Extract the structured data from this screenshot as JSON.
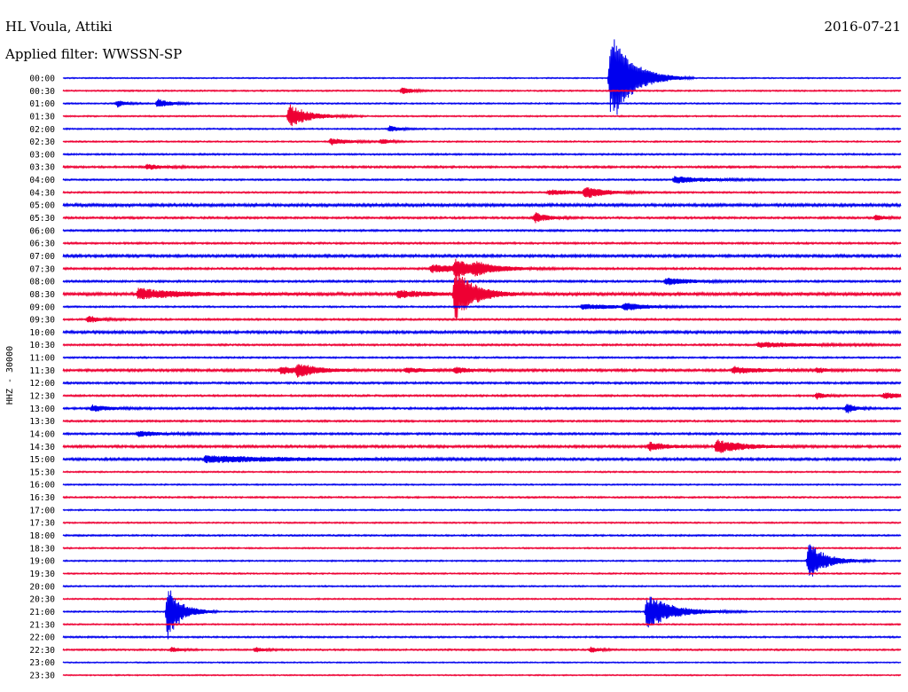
{
  "chart_data": {
    "type": "line",
    "title": "HL Voula, Attiki",
    "date": "2016-07-21",
    "subtitle": "Applied filter: WWSSN-SP",
    "ylabel": "HHZ - 30000",
    "xlabel": "",
    "grid": false,
    "legend": "none",
    "colors": {
      "even_rows": "#0000ee",
      "odd_rows": "#ee0033",
      "text": "#000000",
      "background": "#ffffff"
    },
    "traces": [
      {
        "label": "00:00",
        "noise": 0.6,
        "events": [
          {
            "x": 0.653,
            "amp": 42,
            "len": 0.025
          },
          {
            "x": 0.658,
            "amp": 18,
            "len": 0.02
          }
        ]
      },
      {
        "label": "00:30",
        "noise": 0.7,
        "events": [
          {
            "x": 0.405,
            "amp": 4,
            "len": 0.012
          }
        ]
      },
      {
        "label": "01:00",
        "noise": 0.7,
        "events": [
          {
            "x": 0.065,
            "amp": 4,
            "len": 0.01
          },
          {
            "x": 0.113,
            "amp": 5,
            "len": 0.015
          }
        ]
      },
      {
        "label": "01:30",
        "noise": 0.7,
        "events": [
          {
            "x": 0.27,
            "amp": 14,
            "len": 0.022
          }
        ]
      },
      {
        "label": "02:00",
        "noise": 0.7,
        "events": [
          {
            "x": 0.39,
            "amp": 4,
            "len": 0.01
          }
        ]
      },
      {
        "label": "02:30",
        "noise": 0.7,
        "events": [
          {
            "x": 0.32,
            "amp": 4,
            "len": 0.02
          },
          {
            "x": 0.38,
            "amp": 3,
            "len": 0.01
          }
        ]
      },
      {
        "label": "03:00",
        "noise": 0.8,
        "events": []
      },
      {
        "label": "03:30",
        "noise": 1.0,
        "events": [
          {
            "x": 0.1,
            "amp": 3,
            "len": 0.02
          }
        ]
      },
      {
        "label": "04:00",
        "noise": 0.8,
        "events": [
          {
            "x": 0.73,
            "amp": 4,
            "len": 0.04
          }
        ]
      },
      {
        "label": "04:30",
        "noise": 0.8,
        "events": [
          {
            "x": 0.58,
            "amp": 3,
            "len": 0.04
          },
          {
            "x": 0.623,
            "amp": 7,
            "len": 0.02
          }
        ]
      },
      {
        "label": "05:00",
        "noise": 1.4,
        "events": []
      },
      {
        "label": "05:30",
        "noise": 1.0,
        "events": [
          {
            "x": 0.563,
            "amp": 6,
            "len": 0.015
          },
          {
            "x": 0.97,
            "amp": 3,
            "len": 0.01
          }
        ]
      },
      {
        "label": "06:00",
        "noise": 0.9,
        "events": []
      },
      {
        "label": "06:30",
        "noise": 0.9,
        "events": []
      },
      {
        "label": "07:00",
        "noise": 1.3,
        "events": []
      },
      {
        "label": "07:30",
        "noise": 1.0,
        "events": [
          {
            "x": 0.44,
            "amp": 5,
            "len": 0.04
          },
          {
            "x": 0.468,
            "amp": 10,
            "len": 0.02
          },
          {
            "x": 0.49,
            "amp": 5,
            "len": 0.03
          }
        ]
      },
      {
        "label": "08:00",
        "noise": 1.0,
        "events": [
          {
            "x": 0.72,
            "amp": 4,
            "len": 0.03
          }
        ]
      },
      {
        "label": "08:30",
        "noise": 1.5,
        "events": [
          {
            "x": 0.09,
            "amp": 6,
            "len": 0.05
          },
          {
            "x": 0.4,
            "amp": 4,
            "len": 0.04
          },
          {
            "x": 0.468,
            "amp": 32,
            "len": 0.02
          }
        ]
      },
      {
        "label": "09:00",
        "noise": 0.8,
        "events": [
          {
            "x": 0.62,
            "amp": 3,
            "len": 0.05
          },
          {
            "x": 0.67,
            "amp": 4,
            "len": 0.02
          }
        ]
      },
      {
        "label": "09:30",
        "noise": 0.9,
        "events": [
          {
            "x": 0.03,
            "amp": 4,
            "len": 0.015
          }
        ]
      },
      {
        "label": "10:00",
        "noise": 1.3,
        "events": []
      },
      {
        "label": "10:30",
        "noise": 0.9,
        "events": [
          {
            "x": 0.83,
            "amp": 3,
            "len": 0.06
          }
        ]
      },
      {
        "label": "11:00",
        "noise": 0.8,
        "events": []
      },
      {
        "label": "11:30",
        "noise": 1.2,
        "events": [
          {
            "x": 0.26,
            "amp": 4,
            "len": 0.03
          },
          {
            "x": 0.28,
            "amp": 7,
            "len": 0.02
          },
          {
            "x": 0.41,
            "amp": 3,
            "len": 0.02
          },
          {
            "x": 0.468,
            "amp": 4,
            "len": 0.015
          },
          {
            "x": 0.8,
            "amp": 4,
            "len": 0.03
          },
          {
            "x": 0.9,
            "amp": 3,
            "len": 0.01
          }
        ]
      },
      {
        "label": "12:00",
        "noise": 1.0,
        "events": []
      },
      {
        "label": "12:30",
        "noise": 0.9,
        "events": [
          {
            "x": 0.9,
            "amp": 4,
            "len": 0.01
          },
          {
            "x": 0.98,
            "amp": 4,
            "len": 0.02
          }
        ]
      },
      {
        "label": "13:00",
        "noise": 1.0,
        "events": [
          {
            "x": 0.035,
            "amp": 4,
            "len": 0.02
          },
          {
            "x": 0.935,
            "amp": 6,
            "len": 0.01
          }
        ]
      },
      {
        "label": "13:30",
        "noise": 0.9,
        "events": []
      },
      {
        "label": "14:00",
        "noise": 1.0,
        "events": [
          {
            "x": 0.09,
            "amp": 3,
            "len": 0.03
          }
        ]
      },
      {
        "label": "14:30",
        "noise": 1.2,
        "events": [
          {
            "x": 0.7,
            "amp": 5,
            "len": 0.02
          },
          {
            "x": 0.78,
            "amp": 8,
            "len": 0.03
          }
        ]
      },
      {
        "label": "15:00",
        "noise": 1.2,
        "events": [
          {
            "x": 0.17,
            "amp": 4,
            "len": 0.1
          }
        ]
      },
      {
        "label": "15:30",
        "noise": 0.7,
        "events": []
      },
      {
        "label": "16:00",
        "noise": 0.7,
        "events": []
      },
      {
        "label": "16:30",
        "noise": 0.8,
        "events": []
      },
      {
        "label": "17:00",
        "noise": 0.7,
        "events": []
      },
      {
        "label": "17:30",
        "noise": 0.7,
        "events": []
      },
      {
        "label": "18:00",
        "noise": 0.8,
        "events": []
      },
      {
        "label": "18:30",
        "noise": 0.7,
        "events": []
      },
      {
        "label": "19:00",
        "noise": 0.7,
        "events": [
          {
            "x": 0.89,
            "amp": 22,
            "len": 0.02
          }
        ]
      },
      {
        "label": "19:30",
        "noise": 0.7,
        "events": []
      },
      {
        "label": "20:00",
        "noise": 0.7,
        "events": []
      },
      {
        "label": "20:30",
        "noise": 0.7,
        "events": []
      },
      {
        "label": "21:00",
        "noise": 0.7,
        "events": [
          {
            "x": 0.125,
            "amp": 34,
            "len": 0.015
          },
          {
            "x": 0.697,
            "amp": 20,
            "len": 0.03
          }
        ]
      },
      {
        "label": "21:30",
        "noise": 0.7,
        "events": []
      },
      {
        "label": "22:00",
        "noise": 0.8,
        "events": []
      },
      {
        "label": "22:30",
        "noise": 0.8,
        "events": [
          {
            "x": 0.13,
            "amp": 3,
            "len": 0.01
          },
          {
            "x": 0.23,
            "amp": 3,
            "len": 0.01
          },
          {
            "x": 0.63,
            "amp": 3,
            "len": 0.01
          }
        ]
      },
      {
        "label": "23:00",
        "noise": 0.6,
        "events": []
      },
      {
        "label": "23:30",
        "noise": 0.6,
        "events": []
      }
    ]
  }
}
